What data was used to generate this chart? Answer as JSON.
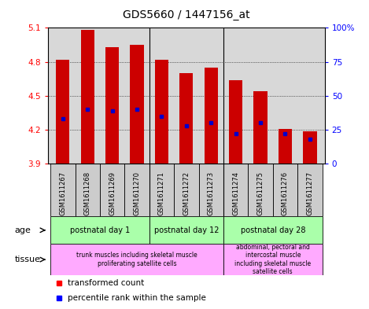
{
  "title": "GDS5660 / 1447156_at",
  "samples": [
    "GSM1611267",
    "GSM1611268",
    "GSM1611269",
    "GSM1611270",
    "GSM1611271",
    "GSM1611272",
    "GSM1611273",
    "GSM1611274",
    "GSM1611275",
    "GSM1611276",
    "GSM1611277"
  ],
  "bar_values": [
    4.82,
    5.08,
    4.93,
    4.95,
    4.82,
    4.7,
    4.75,
    4.64,
    4.54,
    4.21,
    4.19
  ],
  "bar_base": 3.9,
  "percentile_values": [
    33,
    40,
    39,
    40,
    35,
    28,
    30,
    22,
    30,
    22,
    18
  ],
  "ylim": [
    3.9,
    5.1
  ],
  "y2lim": [
    0,
    100
  ],
  "yticks": [
    3.9,
    4.2,
    4.5,
    4.8,
    5.1
  ],
  "y2ticks": [
    0,
    25,
    50,
    75,
    100
  ],
  "y2ticklabels": [
    "0",
    "25",
    "50",
    "75",
    "100%"
  ],
  "bar_color": "#cc0000",
  "dot_color": "#0000cc",
  "bar_width": 0.55,
  "bar_area_bg": "#d8d8d8",
  "age_groups": [
    {
      "label": "postnatal day 1",
      "start": 0,
      "end": 3
    },
    {
      "label": "postnatal day 12",
      "start": 4,
      "end": 6
    },
    {
      "label": "postnatal day 28",
      "start": 7,
      "end": 10
    }
  ],
  "age_dividers": [
    3.5,
    6.5
  ],
  "tissue_groups": [
    {
      "label": "trunk muscles including skeletal muscle\nproliferating satellite cells",
      "start": 0,
      "end": 6
    },
    {
      "label": "abdominal, pectoral and\nintercostal muscle\nincluding skeletal muscle\nsatellite cells",
      "start": 7,
      "end": 10
    }
  ],
  "age_row_color": "#aaffaa",
  "tissue_row_color": "#ffaaff",
  "legend_red": "transformed count",
  "legend_blue": "percentile rank within the sample"
}
